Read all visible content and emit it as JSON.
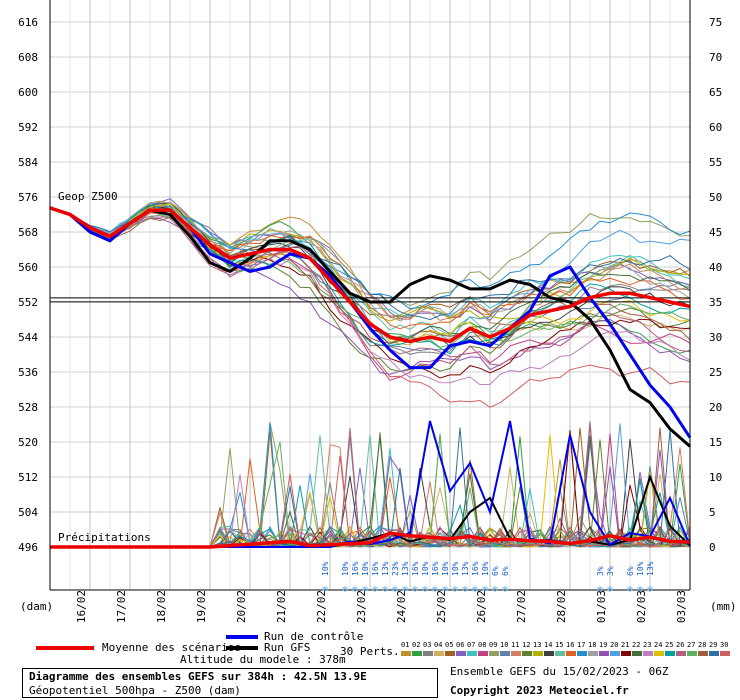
{
  "chart_data": {
    "type": "line",
    "left_axis_ticks": [
      616,
      608,
      600,
      592,
      584,
      576,
      568,
      560,
      552,
      544,
      536,
      528,
      520,
      512,
      504,
      496
    ],
    "right_axis_ticks": [
      75,
      70,
      65,
      60,
      55,
      50,
      45,
      40,
      35,
      30,
      25,
      20,
      15,
      10,
      5,
      0
    ],
    "left_unit": "(dam)",
    "right_unit": "(mm)",
    "date_labels": [
      "16/02",
      "17/02",
      "18/02",
      "19/02",
      "20/02",
      "21/02",
      "22/02",
      "23/02",
      "24/02",
      "25/02",
      "26/02",
      "27/02",
      "28/02",
      "01/03",
      "02/03",
      "03/03"
    ],
    "geop_label": "Geop Z500",
    "precip_label": "Précipitations",
    "x_hours_range": [
      0,
      384
    ],
    "ylim_dam": [
      490,
      620
    ],
    "reference_line_dam": 552.5,
    "series": {
      "moyenne": {
        "name": "Moyenne des scénarios",
        "color": "#ee0000",
        "z500": [
          [
            0,
            573.5
          ],
          [
            12,
            572
          ],
          [
            24,
            569
          ],
          [
            36,
            567
          ],
          [
            48,
            570
          ],
          [
            60,
            573
          ],
          [
            72,
            573
          ],
          [
            84,
            569
          ],
          [
            96,
            565
          ],
          [
            108,
            562
          ],
          [
            120,
            563
          ],
          [
            132,
            564
          ],
          [
            144,
            564
          ],
          [
            156,
            562
          ],
          [
            168,
            557
          ],
          [
            180,
            552
          ],
          [
            192,
            547
          ],
          [
            204,
            544
          ],
          [
            216,
            543
          ],
          [
            228,
            544
          ],
          [
            240,
            543
          ],
          [
            252,
            546
          ],
          [
            264,
            544
          ],
          [
            276,
            546
          ],
          [
            288,
            549
          ],
          [
            300,
            550
          ],
          [
            312,
            551
          ],
          [
            324,
            553
          ],
          [
            336,
            554
          ],
          [
            348,
            554
          ],
          [
            360,
            553
          ],
          [
            372,
            552
          ],
          [
            384,
            551
          ]
        ],
        "precip": [
          [
            0,
            0
          ],
          [
            96,
            0
          ],
          [
            132,
            0.6
          ],
          [
            144,
            0.8
          ],
          [
            156,
            0.2
          ],
          [
            192,
            0.6
          ],
          [
            204,
            2
          ],
          [
            216,
            1.6
          ],
          [
            228,
            1.4
          ],
          [
            240,
            1.2
          ],
          [
            252,
            1.5
          ],
          [
            264,
            1
          ],
          [
            276,
            1.1
          ],
          [
            288,
            0.9
          ],
          [
            300,
            0.8
          ],
          [
            312,
            0.5
          ],
          [
            324,
            0.9
          ],
          [
            336,
            1.6
          ],
          [
            348,
            1
          ],
          [
            360,
            1.4
          ],
          [
            372,
            0.8
          ],
          [
            384,
            0.7
          ]
        ]
      },
      "controle": {
        "name": "Run de contrôle",
        "color": "#0000ee",
        "z500": [
          [
            0,
            573.5
          ],
          [
            12,
            572
          ],
          [
            24,
            568
          ],
          [
            36,
            566
          ],
          [
            48,
            570
          ],
          [
            60,
            573
          ],
          [
            72,
            573
          ],
          [
            84,
            569
          ],
          [
            96,
            563
          ],
          [
            108,
            561
          ],
          [
            120,
            559
          ],
          [
            132,
            560
          ],
          [
            144,
            563
          ],
          [
            156,
            562
          ],
          [
            168,
            558
          ],
          [
            180,
            552
          ],
          [
            192,
            546
          ],
          [
            204,
            541
          ],
          [
            216,
            537
          ],
          [
            228,
            537
          ],
          [
            240,
            542
          ],
          [
            252,
            543
          ],
          [
            264,
            542
          ],
          [
            276,
            546
          ],
          [
            288,
            550
          ],
          [
            300,
            558
          ],
          [
            312,
            560
          ],
          [
            324,
            553
          ],
          [
            336,
            547
          ],
          [
            348,
            540
          ],
          [
            360,
            533
          ],
          [
            372,
            528
          ],
          [
            384,
            521
          ]
        ],
        "precip": [
          [
            0,
            0
          ],
          [
            168,
            0
          ],
          [
            180,
            0.8
          ],
          [
            192,
            0.4
          ],
          [
            204,
            1
          ],
          [
            216,
            2
          ],
          [
            228,
            18
          ],
          [
            240,
            8
          ],
          [
            252,
            12
          ],
          [
            264,
            5
          ],
          [
            276,
            18
          ],
          [
            288,
            1.2
          ],
          [
            300,
            0.5
          ],
          [
            312,
            16
          ],
          [
            324,
            5
          ],
          [
            336,
            0.3
          ],
          [
            348,
            2
          ],
          [
            360,
            1.5
          ],
          [
            372,
            7
          ],
          [
            384,
            0.2
          ]
        ]
      },
      "gfs": {
        "name": "Run GFS",
        "color": "#000000",
        "z500": [
          [
            0,
            573.5
          ],
          [
            12,
            572
          ],
          [
            24,
            568
          ],
          [
            36,
            566
          ],
          [
            48,
            570
          ],
          [
            60,
            573
          ],
          [
            72,
            572
          ],
          [
            84,
            567
          ],
          [
            96,
            561
          ],
          [
            108,
            559
          ],
          [
            120,
            562
          ],
          [
            132,
            566
          ],
          [
            144,
            566
          ],
          [
            156,
            564
          ],
          [
            168,
            559
          ],
          [
            180,
            554
          ],
          [
            192,
            552
          ],
          [
            204,
            552
          ],
          [
            216,
            556
          ],
          [
            228,
            558
          ],
          [
            240,
            557
          ],
          [
            252,
            555
          ],
          [
            264,
            555
          ],
          [
            276,
            557
          ],
          [
            288,
            556
          ],
          [
            300,
            553
          ],
          [
            312,
            552
          ],
          [
            324,
            548
          ],
          [
            336,
            541
          ],
          [
            348,
            532
          ],
          [
            360,
            529
          ],
          [
            372,
            523
          ],
          [
            384,
            519
          ]
        ],
        "precip": [
          [
            0,
            0
          ],
          [
            168,
            0
          ],
          [
            180,
            0.6
          ],
          [
            192,
            1.2
          ],
          [
            204,
            2
          ],
          [
            216,
            0.8
          ],
          [
            228,
            1.5
          ],
          [
            240,
            1
          ],
          [
            252,
            5
          ],
          [
            264,
            7
          ],
          [
            276,
            1.2
          ],
          [
            288,
            0.8
          ],
          [
            300,
            1
          ],
          [
            312,
            0.5
          ],
          [
            324,
            0.8
          ],
          [
            336,
            0.3
          ],
          [
            348,
            1
          ],
          [
            360,
            10
          ],
          [
            372,
            3
          ],
          [
            384,
            0.2
          ]
        ]
      }
    },
    "perturbation_labels": [
      "01",
      "02",
      "03",
      "04",
      "05",
      "06",
      "07",
      "08",
      "09",
      "10",
      "11",
      "12",
      "13",
      "14",
      "15",
      "16",
      "17",
      "18",
      "19",
      "20",
      "21",
      "22",
      "23",
      "24",
      "25",
      "26",
      "27",
      "28",
      "29",
      "30"
    ],
    "perturbation_colors": [
      "#c09030",
      "#30a040",
      "#808080",
      "#d0b060",
      "#a06020",
      "#8060c0",
      "#40c0c0",
      "#c04080",
      "#90a060",
      "#6080b0",
      "#d08060",
      "#608030",
      "#b0b000",
      "#404040",
      "#60c0a0",
      "#e06020",
      "#2090d0",
      "#a0a0a0",
      "#9050b0",
      "#50a0e0",
      "#800000",
      "#407040",
      "#c080c0",
      "#e0c000",
      "#00a0a0",
      "#b06080",
      "#60b060",
      "#a06040",
      "#3070a0",
      "#d06060"
    ],
    "snow_pct": [
      [
        "10%",
        165
      ],
      [
        "10%",
        177
      ],
      [
        "16%",
        183
      ],
      [
        "10%",
        189
      ],
      [
        "16%",
        195
      ],
      [
        "13%",
        201
      ],
      [
        "23%",
        207
      ],
      [
        "13%",
        213
      ],
      [
        "16%",
        219
      ],
      [
        "10%",
        225
      ],
      [
        "16%",
        231
      ],
      [
        "10%",
        237
      ],
      [
        "10%",
        243
      ],
      [
        "13%",
        249
      ],
      [
        "16%",
        255
      ],
      [
        "10%",
        261
      ],
      [
        "6%",
        267
      ],
      [
        "6%",
        273
      ],
      [
        "3%",
        330
      ],
      [
        "3%",
        336
      ],
      [
        "6%",
        348
      ],
      [
        "10%",
        354
      ],
      [
        "13%",
        360
      ]
    ],
    "legend": {
      "moyenne": "Moyenne des scénarios",
      "controle": "Run de contrôle",
      "gfs": "Run GFS",
      "perts": "30 Perts."
    },
    "altitude": "Altitude du modele : 378m",
    "caption_title": "Diagramme des ensembles GEFS sur 384h : 42.5N 13.9E",
    "caption_sub": "Géopotentiel 500hpa - Z500 (dam)",
    "ensemble_run": "Ensemble GEFS du 15/02/2023 - 06Z",
    "copyright": "Copyright 2023 Meteociel.fr"
  }
}
